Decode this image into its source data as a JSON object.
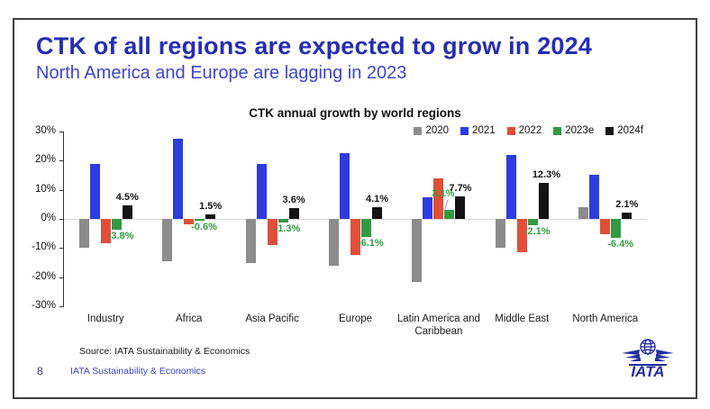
{
  "slide": {
    "title": "CTK of all regions are expected to grow in 2024",
    "subtitle": "North America and Europe are lagging in 2023",
    "source": "Source: IATA Sustainability & Economics",
    "page_number": "8",
    "footer_text": "IATA Sustainability & Economics",
    "logo_text": "IATA"
  },
  "colors": {
    "title": "#262db4",
    "subtitle": "#3d45d5",
    "label_2023e": "#2f9e41",
    "label_2024f": "#141414",
    "logo_blue": "#2430a0"
  },
  "chart_data": {
    "type": "bar",
    "title": "CTK annual growth by world regions",
    "categories": [
      "Industry",
      "Africa",
      "Asia Pacific",
      "Europe",
      "Latin America and Caribbean",
      "Middle East",
      "North America"
    ],
    "series": [
      {
        "name": "2020",
        "color": "#8c8c8c",
        "values": [
          -9.8,
          -14.5,
          -15.2,
          -16.2,
          -21.5,
          -10.0,
          4.0
        ]
      },
      {
        "name": "2021",
        "color": "#2f3cdd",
        "values": [
          19.0,
          27.5,
          19.0,
          22.7,
          7.5,
          22.0,
          15.3
        ]
      },
      {
        "name": "2022",
        "color": "#e04f39",
        "values": [
          -8.5,
          -1.8,
          -9.0,
          -12.5,
          14.0,
          -11.3,
          -5.4
        ]
      },
      {
        "name": "2023e",
        "color": "#339944",
        "values": [
          -3.8,
          -0.6,
          -1.3,
          -6.1,
          3.1,
          -2.1,
          -6.4
        ],
        "labels": [
          "-3.8%",
          "-0.6%",
          "-1.3%",
          "-6.1%",
          "3.1%",
          "-2.1%",
          "-6.4%"
        ],
        "label_color": "#2f9e41"
      },
      {
        "name": "2024f",
        "color": "#141414",
        "values": [
          4.5,
          1.5,
          3.6,
          4.1,
          7.7,
          12.3,
          2.1
        ],
        "labels": [
          "4.5%",
          "1.5%",
          "3.6%",
          "4.1%",
          "7.7%",
          "12.3%",
          "2.1%"
        ],
        "label_color": "#141414"
      }
    ],
    "ylim": [
      -30,
      30
    ],
    "ytick_step": 10,
    "ytick_labels": [
      "30%",
      "20%",
      "10%",
      "0%",
      "-10%",
      "-20%",
      "-30%"
    ],
    "legend_position": "top-right",
    "grid": "zero-line-only"
  }
}
